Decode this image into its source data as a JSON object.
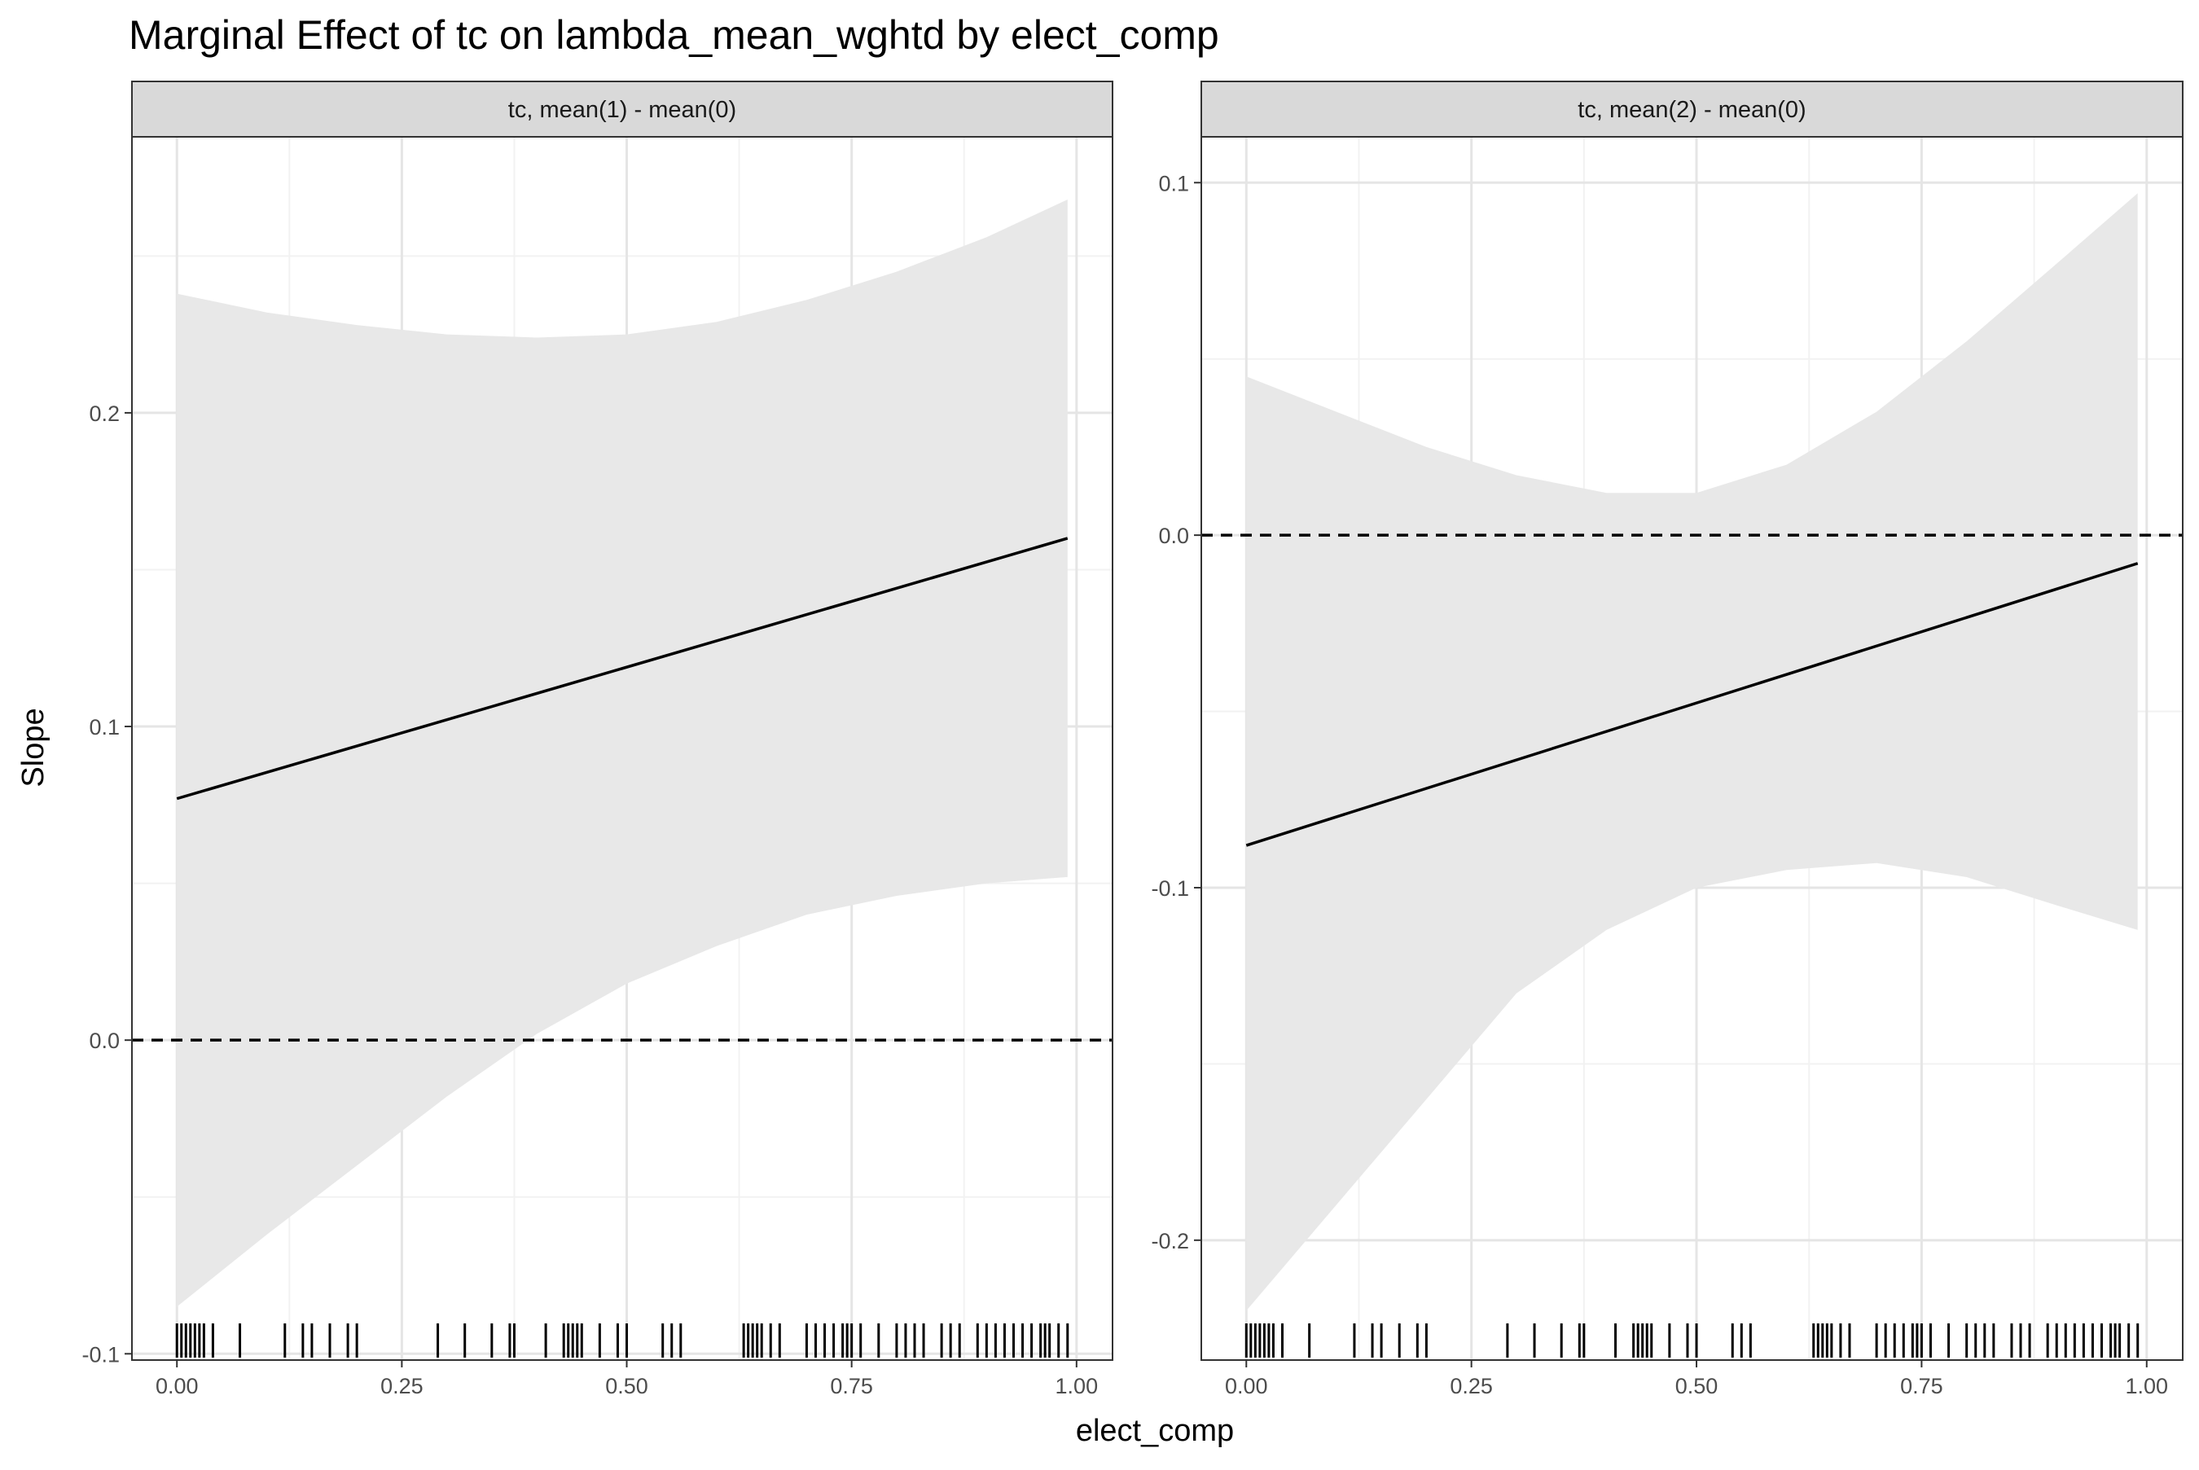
{
  "chart_data": {
    "type": "line",
    "title": "Marginal Effect of tc on lambda_mean_wghtd by elect_comp",
    "xlabel": "elect_comp",
    "ylabel": "Slope",
    "grid": true,
    "legend": "none",
    "colors": {
      "line": "#000000",
      "ribbon": "#e8e8e8",
      "strip_fill": "#d9d9d9",
      "grid_major": "#e5e5e5",
      "grid_minor": "#f2f2f2",
      "panel_border": "#333333"
    },
    "x_ticks": [
      {
        "value": 0.0,
        "label": "0.00"
      },
      {
        "value": 0.25,
        "label": "0.25"
      },
      {
        "value": 0.5,
        "label": "0.50"
      },
      {
        "value": 0.75,
        "label": "0.75"
      },
      {
        "value": 1.0,
        "label": "1.00"
      }
    ],
    "rug_x": [
      0.0,
      0.005,
      0.01,
      0.015,
      0.02,
      0.025,
      0.03,
      0.04,
      0.07,
      0.12,
      0.14,
      0.15,
      0.17,
      0.19,
      0.2,
      0.29,
      0.32,
      0.35,
      0.37,
      0.375,
      0.41,
      0.43,
      0.435,
      0.44,
      0.445,
      0.45,
      0.47,
      0.49,
      0.5,
      0.54,
      0.55,
      0.56,
      0.63,
      0.635,
      0.64,
      0.645,
      0.65,
      0.66,
      0.67,
      0.7,
      0.71,
      0.72,
      0.73,
      0.74,
      0.745,
      0.75,
      0.76,
      0.78,
      0.8,
      0.81,
      0.82,
      0.83,
      0.85,
      0.86,
      0.87,
      0.89,
      0.9,
      0.91,
      0.92,
      0.93,
      0.94,
      0.95,
      0.96,
      0.965,
      0.97,
      0.98,
      0.99
    ],
    "panels": [
      {
        "strip": "tc, mean(1) - mean(0)",
        "xlim": [
          -0.05,
          1.04
        ],
        "ylim": [
          -0.102,
          0.288
        ],
        "y_ticks": [
          {
            "value": -0.1,
            "label": "-0.1"
          },
          {
            "value": 0.0,
            "label": "0.0"
          },
          {
            "value": 0.1,
            "label": "0.1"
          },
          {
            "value": 0.2,
            "label": "0.2"
          }
        ],
        "reference_line": 0.0,
        "estimate": {
          "x": [
            0.0,
            0.99
          ],
          "y": [
            0.077,
            0.16
          ]
        },
        "ci": {
          "x": [
            0.0,
            0.1,
            0.2,
            0.3,
            0.4,
            0.5,
            0.6,
            0.7,
            0.8,
            0.9,
            0.99
          ],
          "lower": [
            -0.085,
            -0.062,
            -0.04,
            -0.018,
            0.002,
            0.018,
            0.03,
            0.04,
            0.046,
            0.05,
            0.052
          ],
          "upper": [
            0.238,
            0.232,
            0.228,
            0.225,
            0.224,
            0.225,
            0.229,
            0.236,
            0.245,
            0.256,
            0.268
          ]
        }
      },
      {
        "strip": "tc, mean(2) - mean(0)",
        "xlim": [
          -0.05,
          1.04
        ],
        "ylim": [
          -0.234,
          0.113
        ],
        "y_ticks": [
          {
            "value": -0.2,
            "label": "-0.2"
          },
          {
            "value": -0.1,
            "label": "-0.1"
          },
          {
            "value": 0.0,
            "label": "0.0"
          },
          {
            "value": 0.1,
            "label": "0.1"
          }
        ],
        "reference_line": 0.0,
        "estimate": {
          "x": [
            0.0,
            0.99
          ],
          "y": [
            -0.088,
            -0.008
          ]
        },
        "ci": {
          "x": [
            0.0,
            0.1,
            0.2,
            0.3,
            0.4,
            0.5,
            0.6,
            0.7,
            0.8,
            0.9,
            0.99
          ],
          "lower": [
            -0.22,
            -0.19,
            -0.16,
            -0.13,
            -0.112,
            -0.1,
            -0.095,
            -0.093,
            -0.097,
            -0.105,
            -0.112
          ],
          "upper": [
            0.045,
            0.035,
            0.025,
            0.017,
            0.012,
            0.012,
            0.02,
            0.035,
            0.055,
            0.077,
            0.097
          ]
        }
      }
    ]
  }
}
